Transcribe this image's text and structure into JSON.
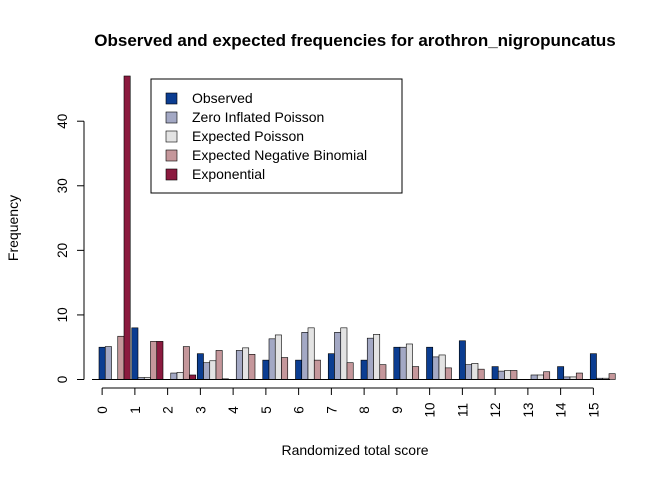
{
  "chart_data": {
    "type": "bar",
    "title": "Observed and expected frequencies for arothron_nigropuncatus",
    "xlabel": "Randomized total score",
    "ylabel": "Frequency",
    "categories": [
      "0",
      "1",
      "2",
      "3",
      "4",
      "5",
      "6",
      "7",
      "8",
      "9",
      "10",
      "11",
      "12",
      "13",
      "14",
      "15"
    ],
    "ylim": [
      0,
      47
    ],
    "yticks": [
      0,
      10,
      20,
      30,
      40
    ],
    "grid": false,
    "legend_position": "top-center",
    "series": [
      {
        "name": "Observed",
        "color": "#0b3d91",
        "values": [
          5,
          8,
          0,
          4,
          0,
          3,
          3,
          4,
          3,
          5,
          5,
          6,
          2,
          0,
          2,
          4
        ]
      },
      {
        "name": "Zero Inflated Poisson",
        "color": "#a3a8c4",
        "values": [
          5.1,
          0.3,
          1.0,
          2.6,
          4.5,
          6.3,
          7.3,
          7.3,
          6.4,
          5.0,
          3.5,
          2.3,
          1.3,
          0.7,
          0.4,
          0.2
        ]
      },
      {
        "name": "Expected Poisson",
        "color": "#e3e3e3",
        "values": [
          0,
          0.3,
          1.1,
          2.9,
          4.9,
          6.9,
          8.0,
          8.0,
          7.0,
          5.5,
          3.8,
          2.5,
          1.4,
          0.7,
          0.4,
          0.2
        ]
      },
      {
        "name": "Expected Negative Binomial",
        "color": "#c5979b",
        "values": [
          6.7,
          5.9,
          5.1,
          4.5,
          3.9,
          3.4,
          3.0,
          2.6,
          2.3,
          2.0,
          1.8,
          1.6,
          1.4,
          1.2,
          1.0,
          0.9
        ]
      },
      {
        "name": "Exponential",
        "color": "#8b1a3f",
        "values": [
          47,
          5.9,
          0.7,
          0.1,
          0,
          0,
          0,
          0,
          0,
          0,
          0,
          0,
          0,
          0,
          0,
          0
        ]
      }
    ]
  }
}
